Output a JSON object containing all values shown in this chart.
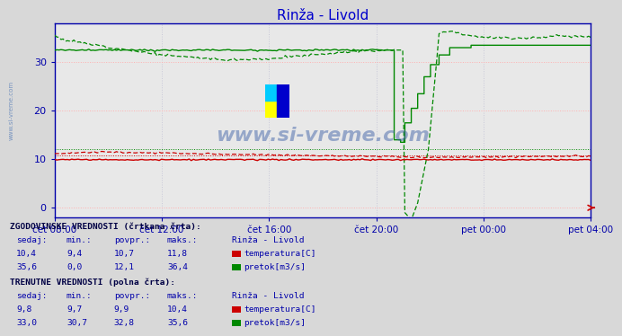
{
  "title": "Rinža - Livold",
  "title_color": "#0000cc",
  "bg_color": "#d8d8d8",
  "plot_bg_color": "#e8e8e8",
  "grid_color_h": "#ffb0b0",
  "grid_color_v": "#c8c8d8",
  "ylim": [
    -2,
    38
  ],
  "yticks": [
    0,
    10,
    20,
    30
  ],
  "xlabel_times": [
    "čet 08:00",
    "čet 12:00",
    "čet 16:00",
    "čet 20:00",
    "pet 00:00",
    "pet 04:00"
  ],
  "temp_color": "#cc0000",
  "flow_color": "#008800",
  "hist_avg_temp": 10.7,
  "hist_avg_flow": 12.1,
  "watermark": "www.si-vreme.com",
  "n_points": 252,
  "axis_color": "#0000aa",
  "arrow_color": "#cc0000"
}
